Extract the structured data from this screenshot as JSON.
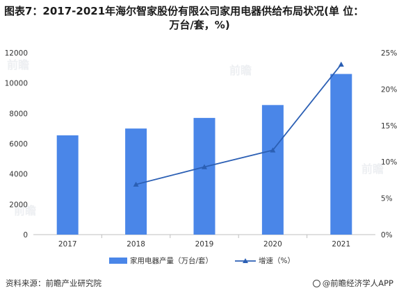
{
  "figure": {
    "title_line1": "图表7：2017-2021年海尔智家股份有限公司家用电器供给布局状况(单 位：",
    "title_line2": "万台/套，%)",
    "source": "资料来源：前瞻产业研究院",
    "brand": "@前瞻经济学人APP",
    "watermark_text": "前瞻",
    "colors": {
      "bar": "#4a86e8",
      "line": "#2b5fb4",
      "axis": "#bfbfbf"
    }
  },
  "chart_data": {
    "type": "bar",
    "categories": [
      "2017",
      "2018",
      "2019",
      "2020",
      "2021"
    ],
    "series": [
      {
        "name": "家用电器产量（万台/套）",
        "type": "bar",
        "axis": "left",
        "values": [
          6550,
          7000,
          7700,
          8550,
          10600
        ]
      },
      {
        "name": "增速（%）",
        "type": "line",
        "axis": "right",
        "marker": "triangle",
        "values": [
          null,
          6.9,
          9.3,
          11.6,
          23.4
        ]
      }
    ],
    "y_left": {
      "min": 0,
      "max": 12000,
      "ticks": [
        "0",
        "2000",
        "4000",
        "6000",
        "8000",
        "10000",
        "12000"
      ]
    },
    "y_right": {
      "min": 0,
      "max": 25,
      "ticks": [
        "0%",
        "5%",
        "10%",
        "15%",
        "20%",
        "25%"
      ]
    },
    "grid": false,
    "legend_position": "bottom"
  }
}
